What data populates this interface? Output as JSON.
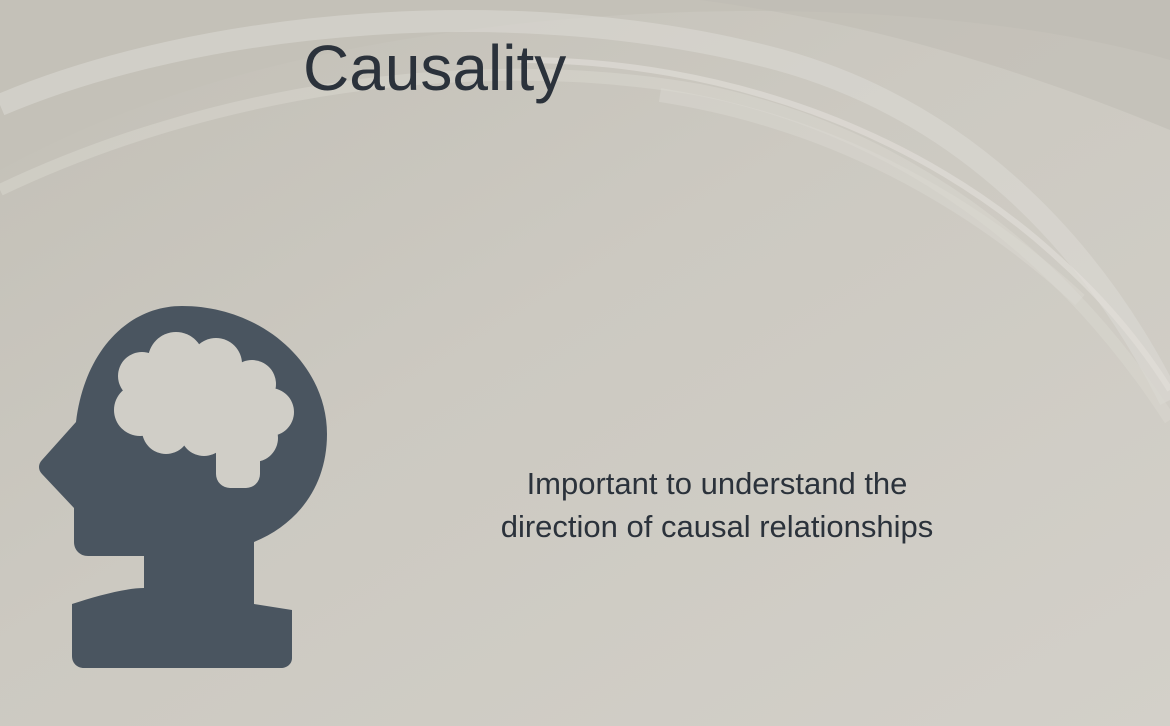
{
  "slide": {
    "title": "Causality",
    "body_lines": [
      "Important to understand the",
      "direction of causal relationships"
    ],
    "icon": "head-with-brain-icon",
    "colors": {
      "background": "#cfccc4",
      "text": "#2b323b",
      "icon": "#4a5560",
      "brain": "#d0cec7"
    }
  }
}
